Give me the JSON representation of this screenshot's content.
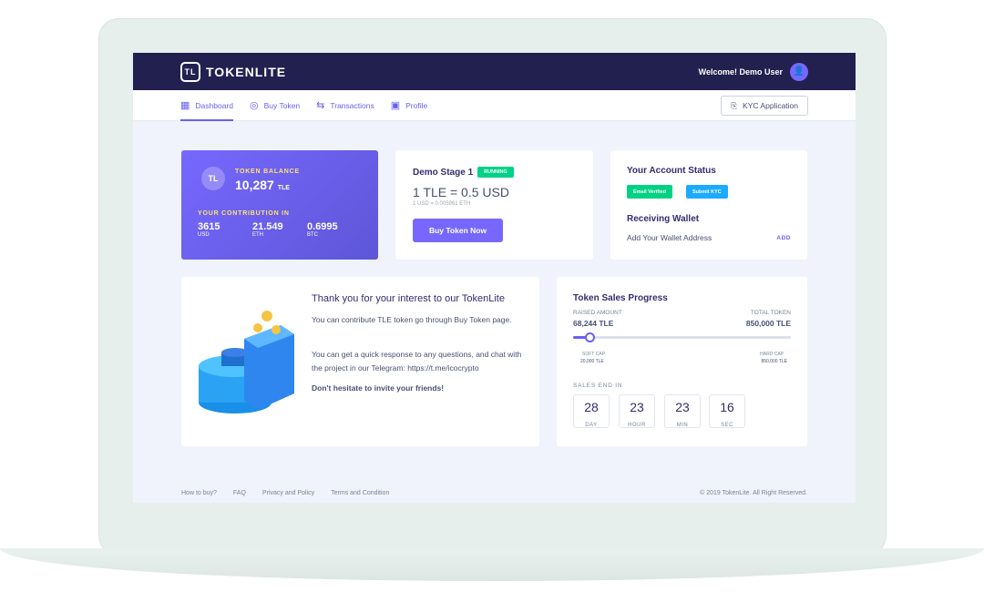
{
  "header": {
    "logo": "TOKENLITE",
    "welcome": "Welcome! Demo User"
  },
  "nav": {
    "items": [
      {
        "label": "Dashboard",
        "icon": "grid-icon"
      },
      {
        "label": "Buy Token",
        "icon": "coins-icon"
      },
      {
        "label": "Transactions",
        "icon": "arrows-icon"
      },
      {
        "label": "Profile",
        "icon": "user-icon"
      }
    ],
    "kyc": "KYC Application"
  },
  "balance": {
    "label": "TOKEN BALANCE",
    "value": "10,287",
    "unit": "TLE",
    "contrib_label": "YOUR CONTRIBUTION IN",
    "contribs": [
      {
        "value": "3615",
        "unit": "USD"
      },
      {
        "value": "21.549",
        "unit": "ETH"
      },
      {
        "value": "0.6995",
        "unit": "BTC"
      }
    ]
  },
  "stage": {
    "title": "Demo Stage 1",
    "badge": "RUNNING",
    "price": "1 TLE = 0.5 USD",
    "rate": "1 USD = 0.005961 ETH",
    "button": "Buy Token Now"
  },
  "account": {
    "title": "Your Account Status",
    "email": "Email Verified",
    "kyc": "Submit KYC",
    "wallet_title": "Receiving Wallet",
    "wallet_text": "Add Your Wallet Address",
    "add": "ADD"
  },
  "info": {
    "title": "Thank you for your interest to our TokenLite",
    "p1": "You can contribute TLE token go through Buy Token page.",
    "p2": "You can get a quick response to any questions, and chat with the project in our Telegram: https://t.me/icocrypto",
    "p3": "Don't hesitate to invite your friends!"
  },
  "sales": {
    "title": "Token Sales Progress",
    "raised_label": "RAISED AMOUNT",
    "raised": "68,244 TLE",
    "total_label": "TOTAL TOKEN",
    "total": "850,000 TLE",
    "progress_percent": 8,
    "soft_label": "SOFT CAP",
    "soft": "20,000 TLE",
    "hard_label": "HARD CAP",
    "hard": "850,000 TLE",
    "end_label": "SALES END IN",
    "countdown": [
      {
        "v": "28",
        "u": "DAY"
      },
      {
        "v": "23",
        "u": "HOUR"
      },
      {
        "v": "23",
        "u": "MIN"
      },
      {
        "v": "16",
        "u": "SEC"
      }
    ]
  },
  "footer": {
    "links": [
      "How to buy?",
      "FAQ",
      "Privacy and Policy",
      "Terms and Condition"
    ],
    "copyright": "© 2019 TokenLite. All Right Reserved."
  },
  "colors": {
    "accent": "#7668fe",
    "header": "#22204f",
    "green": "#00d285",
    "blue": "#1babfe"
  }
}
